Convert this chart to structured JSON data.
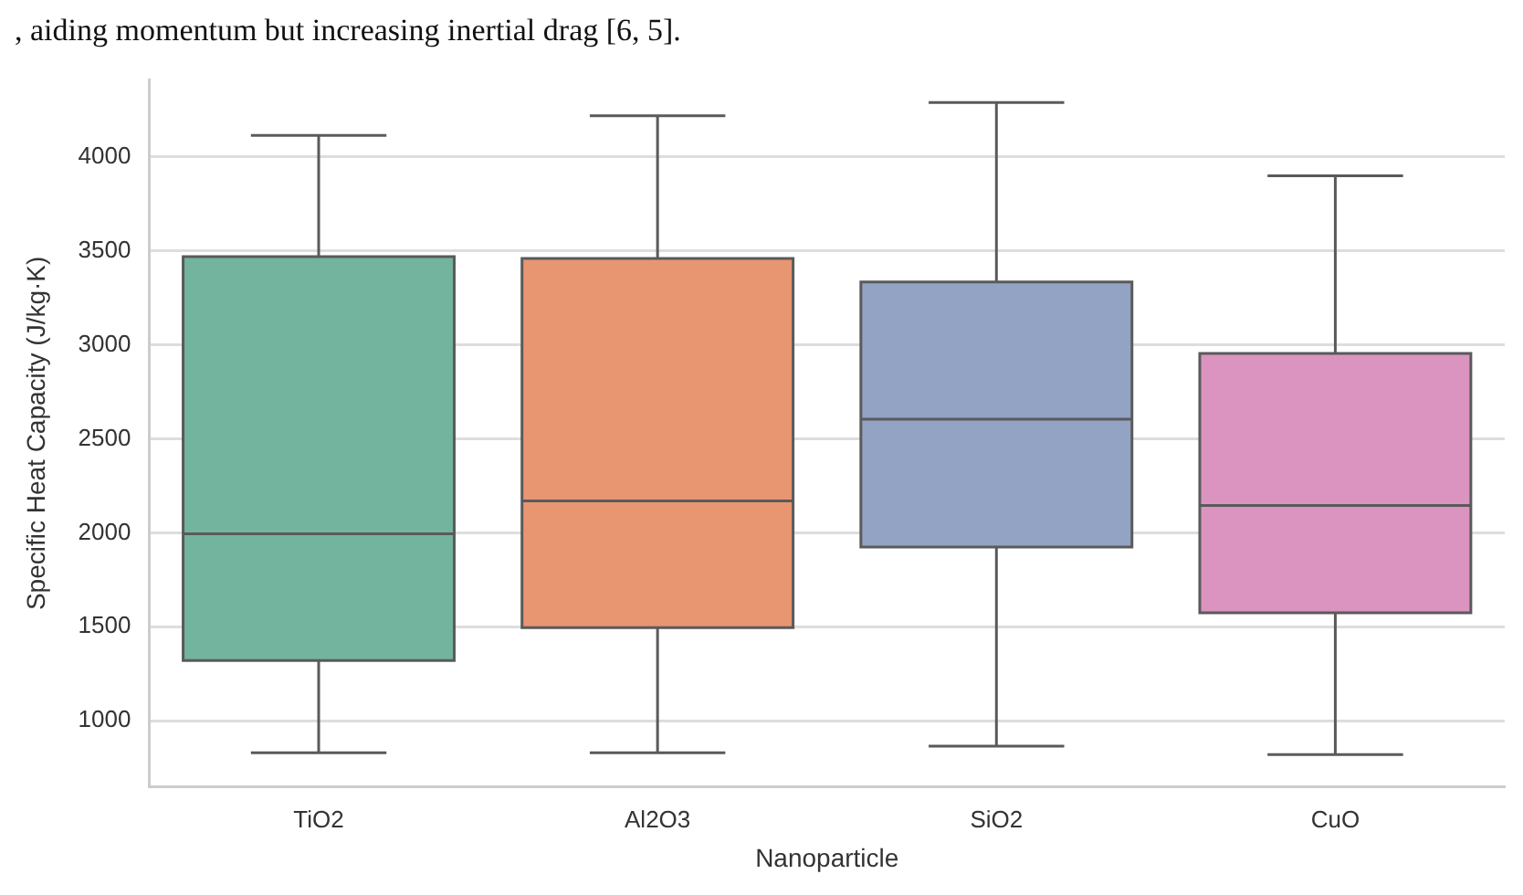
{
  "chart_data": {
    "type": "box",
    "annotations": [
      ", aiding momentum but increasing inertial drag [6, 5]."
    ],
    "xlabel": "Nanoparticle",
    "ylabel": "Specific Heat Capacity (J/kg·K)",
    "categories": [
      "TiO2",
      "Al2O3",
      "SiO2",
      "CuO"
    ],
    "colors": [
      "#73b49f",
      "#e89572",
      "#93a3c3",
      "#db94bf"
    ],
    "boxes": [
      {
        "low": 830,
        "q1": 1320,
        "median": 1995,
        "q3": 3470,
        "high": 4115
      },
      {
        "low": 830,
        "q1": 1495,
        "median": 2170,
        "q3": 3460,
        "high": 4220
      },
      {
        "low": 865,
        "q1": 1925,
        "median": 2605,
        "q3": 3335,
        "high": 4290
      },
      {
        "low": 820,
        "q1": 1575,
        "median": 2145,
        "q3": 2955,
        "high": 3900
      }
    ],
    "ylim": [
      650,
      4410
    ],
    "yticks": [
      1000,
      1500,
      2000,
      2500,
      3000,
      3500,
      4000
    ],
    "grid": "y",
    "legend": false
  }
}
